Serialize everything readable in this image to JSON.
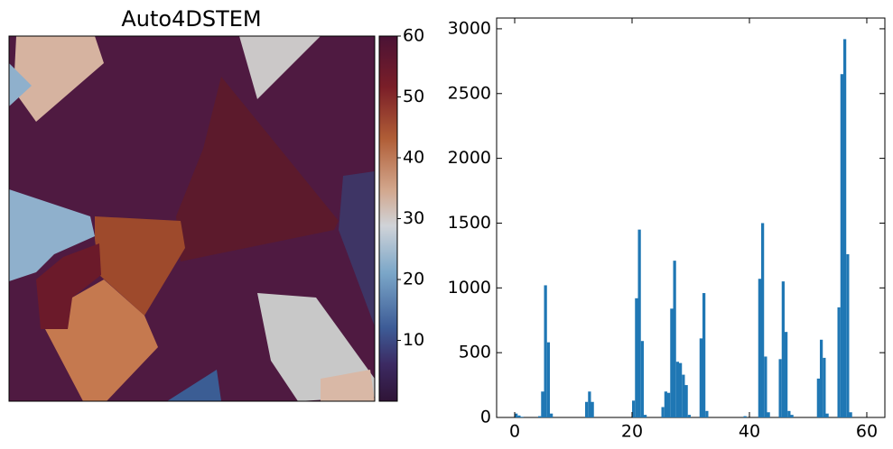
{
  "chart_data": [
    {
      "type": "image",
      "title": "Auto4DSTEM",
      "clim": [
        0,
        60
      ],
      "colorbar_ticks": [
        10,
        20,
        30,
        40,
        50,
        60
      ]
    },
    {
      "type": "histogram",
      "color": "#1f77b4",
      "bins": [
        0,
        0.5,
        1,
        1.5,
        2,
        2.5,
        3,
        3.5,
        4,
        4.5,
        5,
        5.5,
        6,
        6.5,
        7,
        7.5,
        8,
        8.5,
        9,
        9.5,
        10,
        10.5,
        11,
        11.5,
        12,
        12.5,
        13,
        13.5,
        14,
        14.5,
        15,
        15.5,
        16,
        16.5,
        17,
        17.5,
        18,
        18.5,
        19,
        19.5,
        20,
        20.5,
        21,
        21.5,
        22,
        22.5,
        23,
        23.5,
        24,
        24.5,
        25,
        25.5,
        26,
        26.5,
        27,
        27.5,
        28,
        28.5,
        29,
        29.5,
        30,
        30.5,
        31,
        31.5,
        32,
        32.5,
        33,
        33.5,
        34,
        34.5,
        35,
        35.5,
        36,
        36.5,
        37,
        37.5,
        38,
        38.5,
        39,
        39.5,
        40,
        40.5,
        41,
        41.5,
        42,
        42.5,
        43,
        43.5,
        44,
        44.5,
        45,
        45.5,
        46,
        46.5,
        47,
        47.5,
        48,
        48.5,
        49,
        49.5,
        50,
        50.5,
        51,
        51.5,
        52,
        52.5,
        53,
        53.5,
        54,
        54.5,
        55,
        55.5,
        56,
        56.5,
        57,
        57.5,
        58,
        58.5,
        59,
        59.5,
        60
      ],
      "values": [
        30,
        15,
        5,
        0,
        0,
        0,
        0,
        0,
        10,
        200,
        1020,
        580,
        30,
        0,
        0,
        0,
        0,
        0,
        0,
        0,
        0,
        0,
        0,
        0,
        120,
        200,
        120,
        0,
        0,
        0,
        0,
        0,
        0,
        0,
        0,
        0,
        0,
        0,
        0,
        0,
        130,
        920,
        1450,
        590,
        20,
        0,
        0,
        0,
        0,
        0,
        80,
        200,
        190,
        840,
        1210,
        430,
        420,
        330,
        250,
        20,
        0,
        0,
        0,
        610,
        960,
        50,
        0,
        0,
        0,
        0,
        0,
        0,
        0,
        0,
        0,
        0,
        0,
        0,
        10,
        0,
        0,
        0,
        0,
        1070,
        1500,
        470,
        40,
        0,
        0,
        0,
        450,
        1050,
        660,
        50,
        20,
        0,
        0,
        0,
        0,
        0,
        0,
        0,
        0,
        300,
        600,
        460,
        30,
        0,
        0,
        0,
        850,
        2650,
        2920,
        1260,
        40,
        0,
        0,
        0,
        0,
        0
      ],
      "xlim": [
        -3.08,
        63.08
      ],
      "xticks": [
        0,
        20,
        40,
        60
      ],
      "ylim": [
        0,
        3083
      ],
      "yticks": [
        0,
        500,
        1000,
        1500,
        2000,
        2500,
        3000
      ]
    }
  ]
}
